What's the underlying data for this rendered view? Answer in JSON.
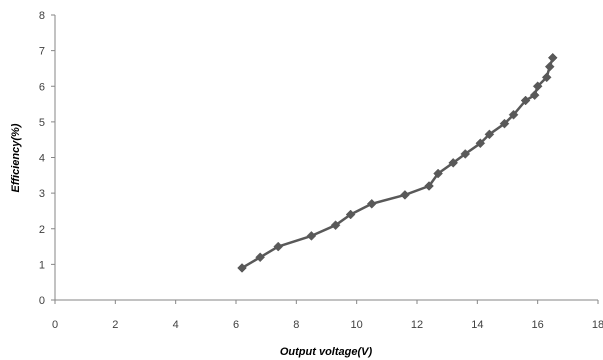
{
  "chart_data": {
    "type": "line",
    "title": "",
    "xlabel": "Output voltage(V)",
    "ylabel": "Efficiency(%)",
    "xlim": [
      0,
      18
    ],
    "ylim": [
      0,
      8
    ],
    "xticks": [
      "0",
      "2",
      "4",
      "6",
      "8",
      "10",
      "12",
      "14",
      "16",
      "18"
    ],
    "yticks": [
      "0",
      "1",
      "2",
      "3",
      "4",
      "5",
      "6",
      "7",
      "8"
    ],
    "grid": false,
    "marker": "diamond",
    "colors": {
      "series": "#595959",
      "axis": "#868686"
    },
    "series": [
      {
        "x": [
          6.2,
          6.8,
          7.4,
          8.5,
          9.3,
          9.8,
          10.5,
          11.6,
          12.4,
          12.7,
          13.2,
          13.6,
          14.1,
          14.4,
          14.9,
          15.2,
          15.6,
          15.9,
          16.0,
          16.3,
          16.4,
          16.5
        ],
        "y": [
          0.9,
          1.2,
          1.5,
          1.8,
          2.1,
          2.4,
          2.7,
          2.95,
          3.2,
          3.55,
          3.85,
          4.1,
          4.4,
          4.65,
          4.95,
          5.2,
          5.6,
          5.75,
          6.0,
          6.25,
          6.55,
          6.8
        ]
      }
    ]
  }
}
